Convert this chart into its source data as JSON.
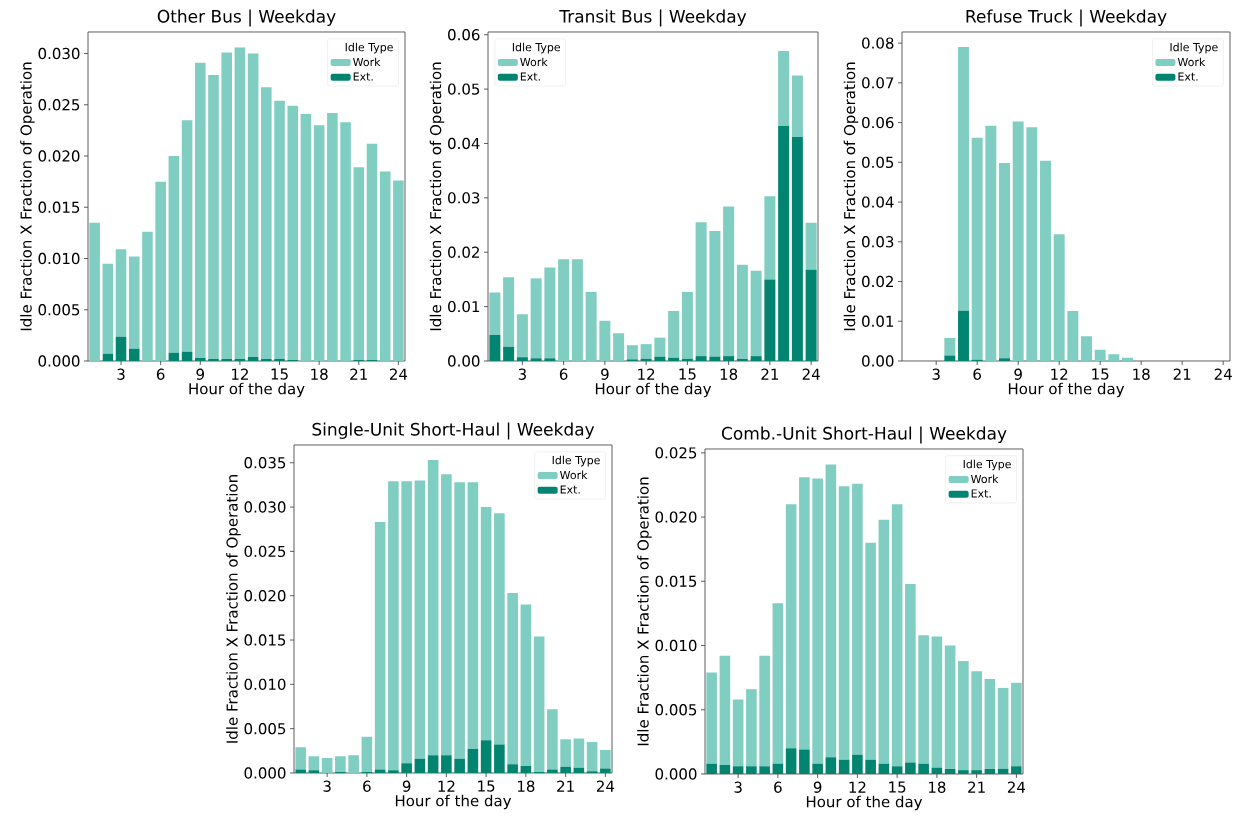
{
  "chart_data": [
    {
      "type": "bar",
      "stacked": true,
      "title": "Other Bus | Weekday",
      "xlabel": "Hour of the day",
      "ylabel": "Idle Fraction X Fraction of Operation",
      "legend": "top right",
      "legend_title": "Idle Type",
      "x": [
        1,
        2,
        3,
        4,
        5,
        6,
        7,
        8,
        9,
        10,
        11,
        12,
        13,
        14,
        15,
        16,
        17,
        18,
        19,
        20,
        21,
        22,
        23,
        24
      ],
      "xlim": [
        0.5,
        24.5
      ],
      "xticks": [
        3,
        6,
        9,
        12,
        15,
        18,
        21,
        24
      ],
      "ylim": [
        0,
        0.0321
      ],
      "yticks": [
        {
          "value": 0,
          "label": "0.000"
        },
        {
          "value": 0.005,
          "label": "0.005"
        },
        {
          "value": 0.01,
          "label": "0.010"
        },
        {
          "value": 0.015,
          "label": "0.015"
        },
        {
          "value": 0.02,
          "label": "0.020"
        },
        {
          "value": 0.025,
          "label": "0.025"
        },
        {
          "value": 0.03,
          "label": "0.030"
        }
      ],
      "series": [
        {
          "name": "Ext.",
          "color": "#018571",
          "values": [
            0,
            0.0007,
            0.0024,
            0.0012,
            0,
            0,
            0.0008,
            0.0009,
            0.0003,
            0.0002,
            0.0002,
            0.0002,
            0.0004,
            0.0002,
            0.0002,
            0.0001,
            0,
            0,
            0,
            0,
            0.0001,
            0.0001,
            0,
            0
          ]
        },
        {
          "name": "Work",
          "color": "#80cdc1",
          "values": [
            0.0135,
            0.0088,
            0.0085,
            0.009,
            0.0126,
            0.0175,
            0.0192,
            0.0226,
            0.0288,
            0.0277,
            0.0299,
            0.0304,
            0.0296,
            0.0265,
            0.0252,
            0.0248,
            0.0241,
            0.023,
            0.0242,
            0.0233,
            0.0188,
            0.0211,
            0.0185,
            0.0176
          ]
        }
      ]
    },
    {
      "type": "bar",
      "stacked": true,
      "title": "Transit Bus | Weekday",
      "xlabel": "Hour of the day",
      "ylabel": "Idle Fraction X Fraction of Operation",
      "legend": "top left",
      "legend_title": "Idle Type",
      "x": [
        1,
        2,
        3,
        4,
        5,
        6,
        7,
        8,
        9,
        10,
        11,
        12,
        13,
        14,
        15,
        16,
        17,
        18,
        19,
        20,
        21,
        22,
        23,
        24
      ],
      "xlim": [
        0.5,
        24.5
      ],
      "xticks": [
        3,
        6,
        9,
        12,
        15,
        18,
        21,
        24
      ],
      "ylim": [
        0,
        0.0605
      ],
      "yticks": [
        {
          "value": 0,
          "label": "0.00"
        },
        {
          "value": 0.01,
          "label": "0.01"
        },
        {
          "value": 0.02,
          "label": "0.02"
        },
        {
          "value": 0.03,
          "label": "0.03"
        },
        {
          "value": 0.04,
          "label": "0.04"
        },
        {
          "value": 0.05,
          "label": "0.05"
        },
        {
          "value": 0.06,
          "label": "0.06"
        }
      ],
      "series": [
        {
          "name": "Ext.",
          "color": "#018571",
          "values": [
            0.0048,
            0.0026,
            0.0007,
            0.0005,
            0.0005,
            0,
            0,
            0,
            0,
            0,
            0.0003,
            0.0004,
            0.0008,
            0.0006,
            0.0004,
            0.0009,
            0.0008,
            0.0009,
            0.0004,
            0.0009,
            0.015,
            0.0432,
            0.0412,
            0.0168
          ]
        },
        {
          "name": "Work",
          "color": "#80cdc1",
          "values": [
            0.0078,
            0.0128,
            0.0079,
            0.0147,
            0.0167,
            0.0187,
            0.0187,
            0.0127,
            0.0074,
            0.0051,
            0.0026,
            0.0027,
            0.0035,
            0.0086,
            0.0123,
            0.0246,
            0.0231,
            0.0275,
            0.0173,
            0.0157,
            0.0153,
            0.0138,
            0.0113,
            0.0086
          ]
        }
      ]
    },
    {
      "type": "bar",
      "stacked": true,
      "title": "Refuse Truck | Weekday",
      "xlabel": "Hour of the day",
      "ylabel": "Idle Fraction X Fraction of Operation",
      "legend": "top right",
      "legend_title": "Idle Type",
      "x": [
        1,
        2,
        3,
        4,
        5,
        6,
        7,
        8,
        9,
        10,
        11,
        12,
        13,
        14,
        15,
        16,
        17,
        18,
        19,
        20,
        21,
        22,
        23,
        24
      ],
      "xlim": [
        0.5,
        24.5
      ],
      "xticks": [
        3,
        6,
        9,
        12,
        15,
        18,
        21,
        24
      ],
      "ylim": [
        0,
        0.0828
      ],
      "yticks": [
        {
          "value": 0,
          "label": "0.00"
        },
        {
          "value": 0.01,
          "label": "0.01"
        },
        {
          "value": 0.02,
          "label": "0.02"
        },
        {
          "value": 0.03,
          "label": "0.03"
        },
        {
          "value": 0.04,
          "label": "0.04"
        },
        {
          "value": 0.05,
          "label": "0.05"
        },
        {
          "value": 0.06,
          "label": "0.06"
        },
        {
          "value": 0.07,
          "label": "0.07"
        },
        {
          "value": 0.08,
          "label": "0.08"
        }
      ],
      "series": [
        {
          "name": "Ext.",
          "color": "#018571",
          "values": [
            0,
            0,
            0,
            0.0014,
            0.0127,
            0.0003,
            0,
            0.0007,
            0,
            0,
            0,
            0,
            0,
            0,
            0,
            0,
            0,
            0,
            0,
            0,
            0,
            0,
            0,
            0
          ]
        },
        {
          "name": "Work",
          "color": "#80cdc1",
          "values": [
            0,
            0,
            0,
            0.0044,
            0.0663,
            0.0559,
            0.0592,
            0.0491,
            0.0603,
            0.0588,
            0.0504,
            0.0319,
            0.0126,
            0.0062,
            0.0028,
            0.0017,
            0.0008,
            0,
            0,
            0,
            0,
            0,
            0,
            0
          ]
        }
      ]
    },
    {
      "type": "bar",
      "stacked": true,
      "title": "Single-Unit Short-Haul | Weekday",
      "xlabel": "Hour of the day",
      "ylabel": "Idle Fraction X Fraction of Operation",
      "legend": "top right",
      "legend_title": "Idle Type",
      "x": [
        1,
        2,
        3,
        4,
        5,
        6,
        7,
        8,
        9,
        10,
        11,
        12,
        13,
        14,
        15,
        16,
        17,
        18,
        19,
        20,
        21,
        22,
        23,
        24
      ],
      "xlim": [
        0.5,
        24.5
      ],
      "xticks": [
        3,
        6,
        9,
        12,
        15,
        18,
        21,
        24
      ],
      "ylim": [
        0,
        0.037
      ],
      "yticks": [
        {
          "value": 0,
          "label": "0.000"
        },
        {
          "value": 0.005,
          "label": "0.005"
        },
        {
          "value": 0.01,
          "label": "0.010"
        },
        {
          "value": 0.015,
          "label": "0.015"
        },
        {
          "value": 0.02,
          "label": "0.020"
        },
        {
          "value": 0.025,
          "label": "0.025"
        },
        {
          "value": 0.03,
          "label": "0.030"
        },
        {
          "value": 0.035,
          "label": "0.035"
        }
      ],
      "series": [
        {
          "name": "Ext.",
          "color": "#018571",
          "values": [
            0.0004,
            0.0003,
            0,
            0.0001,
            0,
            0.0001,
            0.0004,
            0.0003,
            0.0011,
            0.0016,
            0.002,
            0.002,
            0.0016,
            0.0027,
            0.0037,
            0.0032,
            0.001,
            0.0008,
            0.0001,
            0.0004,
            0.0007,
            0.0006,
            0.0002,
            0.0005
          ]
        },
        {
          "name": "Work",
          "color": "#80cdc1",
          "values": [
            0.0025,
            0.0016,
            0.0017,
            0.0018,
            0.002,
            0.004,
            0.0279,
            0.0326,
            0.0318,
            0.0314,
            0.0333,
            0.0317,
            0.0312,
            0.0301,
            0.0263,
            0.0261,
            0.0193,
            0.0182,
            0.0153,
            0.0068,
            0.0031,
            0.0033,
            0.0033,
            0.0021
          ]
        }
      ]
    },
    {
      "type": "bar",
      "stacked": true,
      "title": "Comb.-Unit Short-Haul | Weekday",
      "xlabel": "Hour of the day",
      "ylabel": "Idle Fraction X Fraction of Operation",
      "legend": "top right",
      "legend_title": "Idle Type",
      "x": [
        1,
        2,
        3,
        4,
        5,
        6,
        7,
        8,
        9,
        10,
        11,
        12,
        13,
        14,
        15,
        16,
        17,
        18,
        19,
        20,
        21,
        22,
        23,
        24
      ],
      "xlim": [
        0.5,
        24.5
      ],
      "xticks": [
        3,
        6,
        9,
        12,
        15,
        18,
        21,
        24
      ],
      "ylim": [
        0,
        0.0253
      ],
      "yticks": [
        {
          "value": 0,
          "label": "0.000"
        },
        {
          "value": 0.005,
          "label": "0.005"
        },
        {
          "value": 0.01,
          "label": "0.010"
        },
        {
          "value": 0.015,
          "label": "0.015"
        },
        {
          "value": 0.02,
          "label": "0.020"
        },
        {
          "value": 0.025,
          "label": "0.025"
        }
      ],
      "series": [
        {
          "name": "Ext.",
          "color": "#018571",
          "values": [
            0.0008,
            0.0007,
            0.0006,
            0.0006,
            0.0006,
            0.0008,
            0.002,
            0.0019,
            0.0008,
            0.0013,
            0.0011,
            0.0015,
            0.0011,
            0.0008,
            0.0006,
            0.0009,
            0.0008,
            0.0005,
            0.0004,
            0.0003,
            0.0003,
            0.0004,
            0.0004,
            0.0006
          ]
        },
        {
          "name": "Work",
          "color": "#80cdc1",
          "values": [
            0.0071,
            0.0085,
            0.0052,
            0.006,
            0.0086,
            0.0125,
            0.019,
            0.0212,
            0.0222,
            0.0228,
            0.0213,
            0.0211,
            0.0169,
            0.019,
            0.0204,
            0.0139,
            0.01,
            0.0102,
            0.0096,
            0.0085,
            0.0077,
            0.007,
            0.0063,
            0.0065
          ]
        }
      ]
    }
  ]
}
